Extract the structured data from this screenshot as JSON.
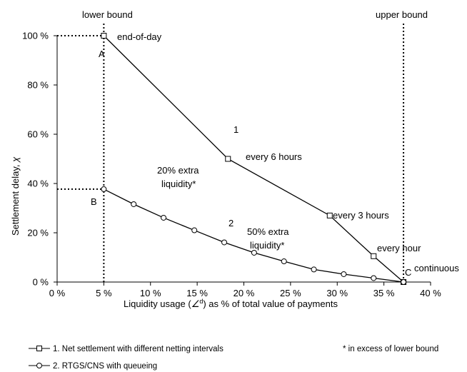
{
  "chart_data": {
    "type": "line",
    "xlabel": "Liquidity usage (∠ d ) as % of total value of payments",
    "xlabel_main": "Liquidity usage (",
    "xlabel_symbol": "∠",
    "xlabel_sup": "d",
    "xlabel_rest": ") as % of total value of payments",
    "ylabel": "Settlement delay, χ",
    "ylabel_main": "Settlement delay, ",
    "ylabel_symbol": "χ",
    "xlim": [
      0,
      40
    ],
    "ylim": [
      0,
      100
    ],
    "x_ticks": [
      "0 %",
      "5 %",
      "10 %",
      "15 %",
      "20 %",
      "25 %",
      "30 %",
      "35 %",
      "40 %"
    ],
    "y_ticks": [
      "0 %",
      "20 %",
      "40 %",
      "60 %",
      "80 %",
      "100 %"
    ],
    "grid": false,
    "series": [
      {
        "name": "1. Net settlement with different netting intervals",
        "marker": "square",
        "x": [
          5,
          18.3,
          29.2,
          33.9,
          37.1
        ],
        "y": [
          100,
          50,
          27,
          10.5,
          0
        ]
      },
      {
        "name": "2. RTGS/CNS with queueing",
        "marker": "circle",
        "x": [
          5,
          8.2,
          11.4,
          14.7,
          17.9,
          21.1,
          24.3,
          27.5,
          30.7,
          33.9,
          37.1
        ],
        "y": [
          37.7,
          31.6,
          26.1,
          21,
          16.1,
          11.9,
          8.4,
          5.1,
          3.2,
          1.6,
          0
        ]
      }
    ],
    "reference_lines": [
      {
        "axis": "x",
        "value": 5,
        "label": "lower bound"
      },
      {
        "axis": "x",
        "value": 37.1,
        "label": "upper bound"
      }
    ],
    "guide_lines": [
      {
        "y": 100,
        "to_x": 5
      },
      {
        "y": 37.7,
        "to_x": 5
      }
    ],
    "annotations": [
      {
        "text": "end-of-day",
        "x": 5,
        "y": 100
      },
      {
        "text": "A",
        "x": 5,
        "y": 100
      },
      {
        "text": "B",
        "x": 5,
        "y": 37.7
      },
      {
        "text": "C",
        "x": 37.1,
        "y": 0
      },
      {
        "text": "continuous",
        "x": 37.1,
        "y": 0
      },
      {
        "text": "1",
        "x": 21,
        "y": 62
      },
      {
        "text": "every 6 hours",
        "x": 18.3,
        "y": 50
      },
      {
        "text": "every 3 hours",
        "x": 29.2,
        "y": 27
      },
      {
        "text": "every hour",
        "x": 33.9,
        "y": 10.5
      },
      {
        "text": "2",
        "x": 21,
        "y": 23
      },
      {
        "text": "20% extra",
        "x": 11.4,
        "y": 26
      },
      {
        "text": "liquidity*",
        "x": 11.4,
        "y": 26
      },
      {
        "text": "50% extra",
        "x": 21.1,
        "y": 11.9
      },
      {
        "text": "liquidity*",
        "x": 21.1,
        "y": 11.9
      }
    ],
    "footnote": "* in excess of lower bound"
  },
  "colors": {
    "line": "#000000",
    "marker_fill": "#ffffff",
    "background": "#ffffff"
  }
}
